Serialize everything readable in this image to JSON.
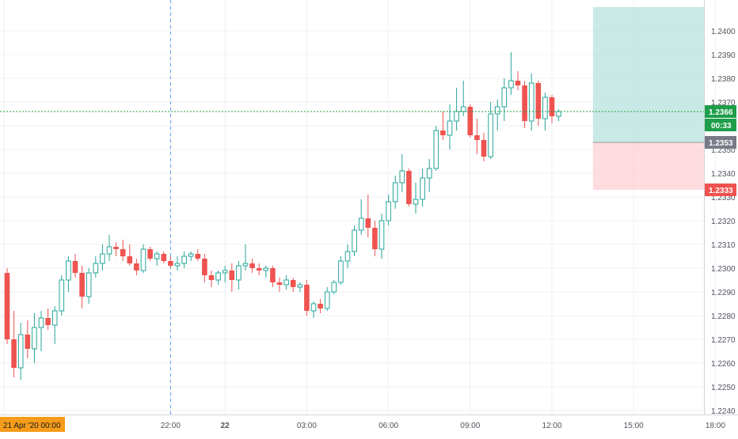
{
  "chart_data": {
    "type": "candlestick",
    "price_axis": {
      "range": [
        1.2242,
        1.241
      ],
      "ticks": [
        "1.2240",
        "1.2250",
        "1.2260",
        "1.2270",
        "1.2280",
        "1.2290",
        "1.2300",
        "1.2310",
        "1.2320",
        "1.2330",
        "1.2340",
        "1.2350",
        "1.2360",
        "1.2370",
        "1.2380",
        "1.2390",
        "1.2400"
      ]
    },
    "time_axis": {
      "ticks": [
        {
          "label": ":00",
          "bar": -0.5,
          "bold": false
        },
        {
          "label": "22:00",
          "bar": 24,
          "bold": false
        },
        {
          "label": "22",
          "bar": 32,
          "bold": true
        },
        {
          "label": "03:00",
          "bar": 44,
          "bold": false
        },
        {
          "label": "06:00",
          "bar": 56,
          "bold": false
        },
        {
          "label": "09:00",
          "bar": 68,
          "bold": false
        },
        {
          "label": "12:00",
          "bar": 80,
          "bold": false
        },
        {
          "label": "15:00",
          "bar": 92,
          "bold": false
        },
        {
          "label": "18:00",
          "bar": 104,
          "bold": false
        }
      ],
      "date_badge": "21 Apr '20   00:00"
    },
    "crosshair_bar": 24,
    "current_price": {
      "value": 1.2366,
      "label": "1.2366",
      "countdown": "00:33",
      "color": "#26a69a"
    },
    "entry": {
      "value": 1.2353,
      "label": "1.2353",
      "color": "#787b86"
    },
    "stop": {
      "value": 1.2333,
      "label": "1.2333",
      "color": "#ef5350"
    },
    "target": {
      "value": 1.241
    },
    "position_bars": [
      86.5,
      109
    ],
    "colors": {
      "up": "#26a69a",
      "down": "#ef5350",
      "up_fill": "#ffffff",
      "profit_zone": "#b2dfdb",
      "loss_zone": "#ffcdd2"
    },
    "candles": [
      [
        1.2298,
        1.23,
        1.2268,
        1.227
      ],
      [
        1.227,
        1.2282,
        1.2254,
        1.2258
      ],
      [
        1.2258,
        1.2277,
        1.2253,
        1.2272
      ],
      [
        1.2272,
        1.2278,
        1.2262,
        1.2266
      ],
      [
        1.2266,
        1.2281,
        1.226,
        1.2275
      ],
      [
        1.2275,
        1.2282,
        1.2265,
        1.2279
      ],
      [
        1.2279,
        1.2283,
        1.2274,
        1.2276
      ],
      [
        1.2276,
        1.2284,
        1.2268,
        1.2282
      ],
      [
        1.2282,
        1.2297,
        1.228,
        1.2295
      ],
      [
        1.2295,
        1.2305,
        1.229,
        1.2303
      ],
      [
        1.2303,
        1.2306,
        1.2296,
        1.2298
      ],
      [
        1.2298,
        1.2301,
        1.2283,
        1.2288
      ],
      [
        1.2288,
        1.23,
        1.2285,
        1.2298
      ],
      [
        1.2298,
        1.2305,
        1.2296,
        1.2302
      ],
      [
        1.2302,
        1.231,
        1.2299,
        1.2306
      ],
      [
        1.2306,
        1.2314,
        1.2303,
        1.2309
      ],
      [
        1.2309,
        1.2311,
        1.2305,
        1.2308
      ],
      [
        1.2308,
        1.2312,
        1.2303,
        1.2305
      ],
      [
        1.2305,
        1.231,
        1.2301,
        1.2302
      ],
      [
        1.2302,
        1.2304,
        1.2297,
        1.2299
      ],
      [
        1.2299,
        1.231,
        1.2298,
        1.2308
      ],
      [
        1.2308,
        1.2309,
        1.2303,
        1.2304
      ],
      [
        1.2304,
        1.2307,
        1.2301,
        1.2306
      ],
      [
        1.2306,
        1.2307,
        1.2302,
        1.2303
      ],
      [
        1.2303,
        1.2305,
        1.23,
        1.2301
      ],
      [
        1.2301,
        1.2305,
        1.2299,
        1.2302
      ],
      [
        1.2302,
        1.2307,
        1.23,
        1.2305
      ],
      [
        1.2305,
        1.2307,
        1.2303,
        1.2306
      ],
      [
        1.2306,
        1.2308,
        1.2303,
        1.2304
      ],
      [
        1.2304,
        1.2306,
        1.2294,
        1.2297
      ],
      [
        1.2297,
        1.2299,
        1.2292,
        1.2295
      ],
      [
        1.2295,
        1.2299,
        1.2293,
        1.2298
      ],
      [
        1.2298,
        1.2301,
        1.2294,
        1.2299
      ],
      [
        1.2299,
        1.2302,
        1.229,
        1.2295
      ],
      [
        1.2295,
        1.2303,
        1.2291,
        1.2301
      ],
      [
        1.2301,
        1.231,
        1.2299,
        1.2302
      ],
      [
        1.2302,
        1.2304,
        1.2298,
        1.23
      ],
      [
        1.23,
        1.2302,
        1.2297,
        1.2299
      ],
      [
        1.2299,
        1.2301,
        1.2296,
        1.23
      ],
      [
        1.23,
        1.2301,
        1.2292,
        1.2294
      ],
      [
        1.2294,
        1.2296,
        1.229,
        1.2293
      ],
      [
        1.2293,
        1.2297,
        1.2291,
        1.2295
      ],
      [
        1.2295,
        1.2296,
        1.229,
        1.2292
      ],
      [
        1.2292,
        1.2294,
        1.229,
        1.2293
      ],
      [
        1.2293,
        1.2295,
        1.228,
        1.2282
      ],
      [
        1.2282,
        1.2286,
        1.2279,
        1.2285
      ],
      [
        1.2285,
        1.2287,
        1.2281,
        1.2283
      ],
      [
        1.2283,
        1.2292,
        1.2282,
        1.229
      ],
      [
        1.229,
        1.2295,
        1.2289,
        1.2294
      ],
      [
        1.2294,
        1.2305,
        1.2293,
        1.2303
      ],
      [
        1.2303,
        1.231,
        1.23,
        1.2307
      ],
      [
        1.2307,
        1.2318,
        1.2305,
        1.2316
      ],
      [
        1.2316,
        1.2329,
        1.2314,
        1.2321
      ],
      [
        1.2321,
        1.2331,
        1.2313,
        1.2317
      ],
      [
        1.2317,
        1.232,
        1.2305,
        1.2308
      ],
      [
        1.2308,
        1.2323,
        1.2304,
        1.232
      ],
      [
        1.232,
        1.2331,
        1.2318,
        1.2328
      ],
      [
        1.2328,
        1.2339,
        1.2325,
        1.2336
      ],
      [
        1.2336,
        1.2348,
        1.2332,
        1.2341
      ],
      [
        1.2341,
        1.2342,
        1.2326,
        1.2327
      ],
      [
        1.2327,
        1.2336,
        1.2323,
        1.2329
      ],
      [
        1.2329,
        1.2342,
        1.2326,
        1.2338
      ],
      [
        1.2338,
        1.2346,
        1.2332,
        1.2342
      ],
      [
        1.2342,
        1.236,
        1.2341,
        1.2358
      ],
      [
        1.2358,
        1.2366,
        1.2354,
        1.2356
      ],
      [
        1.2356,
        1.2369,
        1.235,
        1.2362
      ],
      [
        1.2362,
        1.2376,
        1.2358,
        1.2366
      ],
      [
        1.2366,
        1.2379,
        1.2364,
        1.2368
      ],
      [
        1.2368,
        1.2369,
        1.2355,
        1.2356
      ],
      [
        1.2356,
        1.2363,
        1.2348,
        1.2354
      ],
      [
        1.2354,
        1.2357,
        1.2345,
        1.2347
      ],
      [
        1.2347,
        1.237,
        1.2346,
        1.2365
      ],
      [
        1.2365,
        1.2371,
        1.2358,
        1.2368
      ],
      [
        1.2368,
        1.238,
        1.2362,
        1.2376
      ],
      [
        1.2376,
        1.2391,
        1.2373,
        1.2379
      ],
      [
        1.2379,
        1.2383,
        1.2375,
        1.2377
      ],
      [
        1.2377,
        1.2379,
        1.2359,
        1.2362
      ],
      [
        1.2362,
        1.2382,
        1.2358,
        1.2378
      ],
      [
        1.2378,
        1.2379,
        1.236,
        1.2363
      ],
      [
        1.2363,
        1.2374,
        1.2358,
        1.2372
      ],
      [
        1.2372,
        1.2373,
        1.2361,
        1.2364
      ],
      [
        1.2364,
        1.2367,
        1.2362,
        1.2366
      ]
    ]
  }
}
